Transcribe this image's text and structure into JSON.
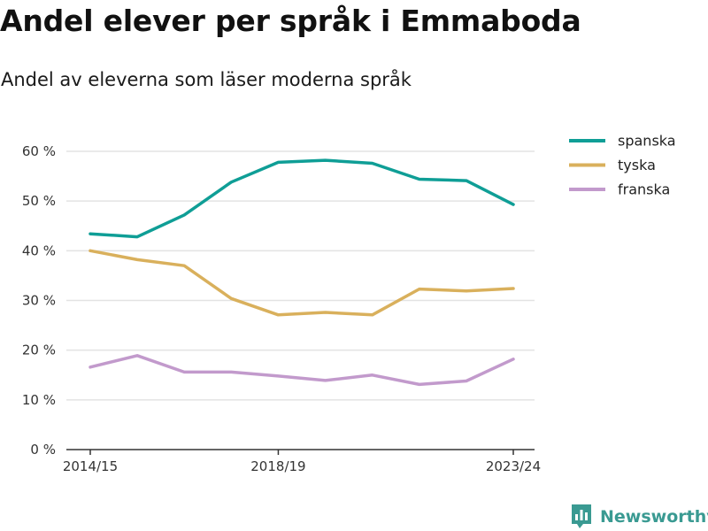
{
  "chart_data": {
    "type": "line",
    "title": "Andel elever per språk i Emmaboda",
    "subtitle": "Andel av eleverna som läser moderna språk",
    "x": [
      "2014/15",
      "2015/16",
      "2016/17",
      "2017/18",
      "2018/19",
      "2019/20",
      "2020/21",
      "2021/22",
      "2022/23",
      "2023/24"
    ],
    "x_tick_labels": [
      "2014/15",
      "2018/19",
      "2023/24"
    ],
    "y_ticks": [
      0,
      10,
      20,
      30,
      40,
      50,
      60
    ],
    "y_tick_labels": [
      "0 %",
      "10 %",
      "20 %",
      "30 %",
      "40 %",
      "50 %",
      "60 %"
    ],
    "ylim": [
      0,
      60
    ],
    "grid": true,
    "legend_position": "right",
    "series": [
      {
        "name": "spanska",
        "color": "#0f9e96",
        "values": [
          43.4,
          42.8,
          47.2,
          53.8,
          57.8,
          58.2,
          57.6,
          54.4,
          54.1,
          49.3
        ]
      },
      {
        "name": "tyska",
        "color": "#d9b05c",
        "values": [
          40.0,
          38.2,
          37.0,
          30.4,
          27.1,
          27.6,
          27.1,
          32.3,
          31.9,
          32.4
        ]
      },
      {
        "name": "franska",
        "color": "#c29acc",
        "values": [
          16.6,
          18.9,
          15.6,
          15.6,
          14.8,
          13.9,
          15.0,
          13.1,
          13.8,
          18.2
        ]
      }
    ]
  },
  "brand": {
    "name": "Newsworthy",
    "icon": "newsworthy-logo-icon"
  }
}
